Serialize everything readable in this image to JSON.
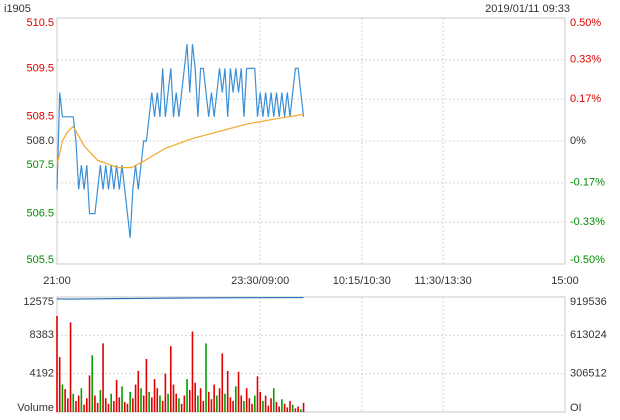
{
  "chart_data": [
    {
      "type": "line",
      "title": "i1905",
      "subtitle": "2019/01/11 09:33",
      "xlim": [
        0,
        375
      ],
      "xticks": [
        {
          "value": 0,
          "label": "21:00"
        },
        {
          "value": 150,
          "label": "23:30/09:00"
        },
        {
          "value": 225,
          "label": "10:15/10:30"
        },
        {
          "value": 285,
          "label": "11:30/13:30"
        },
        {
          "value": 375,
          "label": "15:00"
        }
      ],
      "ylim": [
        505.46,
        510.54
      ],
      "yticks": [
        {
          "value": 510.5,
          "label": "510.5"
        },
        {
          "value": 509.5,
          "label": "509.5"
        },
        {
          "value": 508.5,
          "label": "508.5"
        },
        {
          "value": 508,
          "label": "508.0"
        },
        {
          "value": 507.5,
          "label": "507.5"
        },
        {
          "value": 506.5,
          "label": "506.5"
        },
        {
          "value": 505.5,
          "label": "505.5"
        }
      ],
      "y2lim": [
        -0.5,
        0.5
      ],
      "y2ticks": [
        {
          "value": 0.5,
          "label": "0.50%"
        },
        {
          "value": 0.33,
          "label": "0.33%"
        },
        {
          "value": 0.17,
          "label": "0.17%"
        },
        {
          "value": 0,
          "label": "0%"
        },
        {
          "value": -0.17,
          "label": "-0.17%"
        },
        {
          "value": -0.33,
          "label": "-0.33%"
        },
        {
          "value": -0.5,
          "label": "-0.50%"
        }
      ],
      "grid": true,
      "series": [
        {
          "color": "#3a8fd6",
          "x": [
            0,
            2,
            4,
            6,
            8,
            10,
            12,
            14,
            16,
            18,
            20,
            22,
            24,
            26,
            28,
            30,
            32,
            34,
            36,
            38,
            40,
            42,
            44,
            46,
            48,
            50,
            52,
            54,
            56,
            58,
            60,
            62,
            64,
            66,
            68,
            70,
            72,
            74,
            76,
            78,
            80,
            82,
            84,
            86,
            88,
            90,
            92,
            94,
            96,
            98,
            100,
            102,
            104,
            106,
            108,
            110,
            112,
            114,
            116,
            118,
            120,
            122,
            124,
            126,
            128,
            130,
            132,
            134,
            136,
            138,
            140,
            142,
            144,
            146,
            148,
            150,
            152,
            154,
            156,
            158,
            160,
            162,
            164,
            166,
            168,
            170,
            172,
            174,
            176,
            178,
            180,
            182
          ],
          "values": [
            507,
            509,
            508.5,
            508.5,
            508.5,
            508.5,
            508.5,
            508,
            507,
            507.5,
            507,
            507.5,
            506.5,
            506.5,
            506.5,
            507,
            507.5,
            507,
            507.5,
            507,
            507.5,
            507,
            507.5,
            507,
            507.5,
            507,
            506.5,
            506,
            507,
            507.5,
            507,
            507.5,
            508,
            508,
            508.5,
            509,
            508.5,
            509,
            508.5,
            509.5,
            508.5,
            509,
            509.5,
            508.5,
            509,
            508.5,
            509,
            509.5,
            510,
            509,
            510,
            509.5,
            508.5,
            509.5,
            509.5,
            509,
            508.5,
            509,
            508.5,
            509,
            509.5,
            509,
            509.5,
            508.5,
            509.5,
            509,
            509.5,
            509,
            509.5,
            508.5,
            509.5,
            509.5,
            509.5,
            509.5,
            508.5,
            509,
            508.5,
            509,
            508.5,
            509,
            508.5,
            509,
            508.5,
            509,
            508.5,
            509,
            508.5,
            509,
            509.5,
            509.5,
            509,
            508.5
          ]
        },
        {
          "color": "#f0a828",
          "x": [
            0,
            4,
            8,
            12,
            20,
            30,
            45,
            55,
            65,
            80,
            100,
            120,
            140,
            160,
            182
          ],
          "values": [
            507.5,
            508.0,
            508.2,
            508.3,
            507.9,
            507.6,
            507.45,
            507.45,
            507.6,
            507.85,
            508.05,
            508.2,
            508.35,
            508.45,
            508.55
          ]
        }
      ]
    },
    {
      "type": "bar",
      "xlim": [
        0,
        375
      ],
      "xticks": [
        0,
        150,
        225,
        285,
        375
      ],
      "ylim": [
        0,
        12575
      ],
      "yticks": [
        {
          "value": 0,
          "label": "Volume"
        },
        4192,
        8383,
        12575
      ],
      "y2lim": [
        0,
        919536
      ],
      "y2ticks": [
        {
          "value": 0,
          "label": "OI"
        },
        306512,
        613024,
        919536
      ],
      "grid": true,
      "series": [
        {
          "type": "bar",
          "x": [
            0,
            2,
            4,
            6,
            8,
            10,
            12,
            14,
            16,
            18,
            20,
            22,
            24,
            26,
            28,
            30,
            32,
            34,
            36,
            38,
            40,
            42,
            44,
            46,
            48,
            50,
            52,
            54,
            56,
            58,
            60,
            62,
            64,
            66,
            68,
            70,
            72,
            74,
            76,
            78,
            80,
            82,
            84,
            86,
            88,
            90,
            92,
            94,
            96,
            98,
            100,
            102,
            104,
            106,
            108,
            110,
            112,
            114,
            116,
            118,
            120,
            122,
            124,
            126,
            128,
            130,
            132,
            134,
            136,
            138,
            140,
            142,
            144,
            146,
            148,
            150,
            152,
            154,
            156,
            158,
            160,
            162,
            164,
            166,
            168,
            170,
            172,
            174,
            176,
            178,
            180,
            182
          ],
          "values": [
            10500,
            6000,
            3000,
            2500,
            1500,
            9800,
            2000,
            1200,
            1800,
            2600,
            800,
            1500,
            4000,
            6200,
            1800,
            1000,
            2400,
            7500,
            1500,
            900,
            2000,
            1200,
            3500,
            1600,
            2800,
            1100,
            900,
            2200,
            1500,
            3000,
            4500,
            2600,
            1800,
            5800,
            2200,
            1600,
            3600,
            2600,
            1800,
            1200,
            4200,
            2000,
            7200,
            3000,
            2000,
            1500,
            900,
            1800,
            3600,
            2400,
            8800,
            3200,
            1800,
            2600,
            1200,
            7500,
            2200,
            1400,
            3000,
            1800,
            2600,
            6400,
            2000,
            4500,
            1600,
            1200,
            2800,
            4400,
            1800,
            1200,
            2600,
            1500,
            900,
            1800,
            3900,
            2200,
            1200,
            1800,
            700,
            1500,
            2600,
            1100,
            600,
            1400,
            900,
            500,
            1200,
            800,
            400,
            600,
            300,
            1000
          ],
          "colors": [
            "#e00000",
            "#e00000",
            "#00a000",
            "#e00000",
            "#e00000",
            "#e00000",
            "#00a000",
            "#e00000",
            "#e00000",
            "#00a000",
            "#e00000",
            "#e00000",
            "#e00000",
            "#00a000",
            "#e00000",
            "#e00000",
            "#00a000",
            "#e00000",
            "#e00000",
            "#e00000",
            "#00a000",
            "#e00000",
            "#e00000",
            "#e00000",
            "#00a000",
            "#e00000",
            "#e00000",
            "#00a000",
            "#e00000",
            "#e00000",
            "#e00000",
            "#00a000",
            "#e00000",
            "#e00000",
            "#00a000",
            "#e00000",
            "#e00000",
            "#e00000",
            "#00a000",
            "#e00000",
            "#e00000",
            "#00a000",
            "#e00000",
            "#e00000",
            "#e00000",
            "#00a000",
            "#e00000",
            "#e00000",
            "#00a000",
            "#e00000",
            "#e00000",
            "#e00000",
            "#00a000",
            "#e00000",
            "#e00000",
            "#00a000",
            "#e00000",
            "#e00000",
            "#e00000",
            "#00a000",
            "#e00000",
            "#e00000",
            "#00a000",
            "#e00000",
            "#e00000",
            "#e00000",
            "#00a000",
            "#e00000",
            "#e00000",
            "#00a000",
            "#e00000",
            "#e00000",
            "#e00000",
            "#00a000",
            "#e00000",
            "#e00000",
            "#00a000",
            "#e00000",
            "#e00000",
            "#e00000",
            "#00a000",
            "#e00000",
            "#e00000",
            "#00a000",
            "#e00000",
            "#e00000",
            "#e00000",
            "#00a000",
            "#e00000",
            "#e00000",
            "#00a000",
            "#e00000"
          ]
        },
        {
          "type": "line",
          "axis": "y2",
          "color": "#2a6fb8",
          "x": [
            0,
            10,
            30,
            60,
            90,
            120,
            150,
            182
          ],
          "values": [
            904000,
            903000,
            905000,
            908000,
            911000,
            913000,
            914000,
            915000
          ]
        }
      ]
    }
  ]
}
